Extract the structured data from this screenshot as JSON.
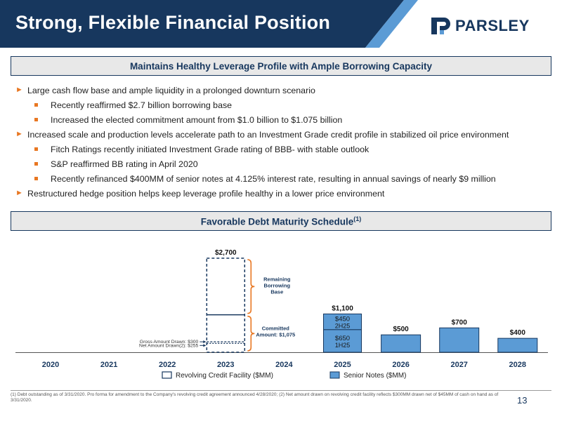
{
  "header": {
    "title": "Strong, Flexible Financial Position",
    "logo_text": "PARSLEY",
    "colors": {
      "navy": "#17375e",
      "orange": "#e87722",
      "bar_blue": "#5b9bd5"
    }
  },
  "section1": {
    "title": "Maintains Healthy Leverage Profile with Ample Borrowing Capacity"
  },
  "bullets": [
    {
      "level": 1,
      "text": "Large cash flow base and ample liquidity in a prolonged downturn scenario"
    },
    {
      "level": 2,
      "text": "Recently reaffirmed $2.7 billion borrowing base"
    },
    {
      "level": 2,
      "text": "Increased the elected commitment amount from $1.0 billion to $1.075 billion"
    },
    {
      "level": 1,
      "text": "Increased scale and production levels accelerate path to an Investment Grade credit profile in stabilized oil price environment"
    },
    {
      "level": 2,
      "text": "Fitch Ratings recently initiated Investment Grade rating of BBB- with stable outlook"
    },
    {
      "level": 2,
      "text": "S&P reaffirmed BB rating in April 2020"
    },
    {
      "level": 2,
      "text": "Recently refinanced $400MM of senior notes at 4.125% interest rate, resulting in annual savings of nearly $9 million"
    },
    {
      "level": 1,
      "text": "Restructured hedge position helps keep leverage profile healthy in a lower price environment"
    }
  ],
  "section2": {
    "title": "Favorable Debt Maturity Schedule",
    "sup": "(1)"
  },
  "chart_data": {
    "type": "bar",
    "categories": [
      "2020",
      "2021",
      "2022",
      "2023",
      "2024",
      "2025",
      "2026",
      "2027",
      "2028"
    ],
    "ylim": [
      0,
      2700
    ],
    "series": [
      {
        "name": "Revolving Credit Facility ($MM)",
        "values": [
          0,
          0,
          0,
          2700,
          0,
          0,
          0,
          0,
          0
        ]
      },
      {
        "name": "Senior Notes ($MM)",
        "values": [
          0,
          0,
          0,
          0,
          0,
          1100,
          500,
          700,
          400
        ]
      }
    ],
    "revolver": {
      "total": 2700,
      "total_label": "$2,700",
      "committed": 1075,
      "gross_drawn": 300,
      "net_drawn": 255,
      "label_remaining": "Remaining Borrowing Base",
      "label_committed_1": "Committed",
      "label_committed_2": "Amount: $1,075",
      "label_gross": "Gross Amount Drawn: $300",
      "label_net": "Net Amount Drawn(2): $255"
    },
    "senior_2025": {
      "total_label": "$1,100",
      "segments": [
        {
          "value": 650,
          "label": "$650",
          "sub": "1H25"
        },
        {
          "value": 450,
          "label": "$450",
          "sub": "2H25"
        }
      ]
    },
    "data_labels": {
      "2026": "$500",
      "2027": "$700",
      "2028": "$400"
    },
    "legend": [
      "Revolving Credit Facility ($MM)",
      "Senior Notes ($MM)"
    ]
  },
  "footnote": "(1) Debt outstanding as of 3/31/2020. Pro forma for amendment to the Company's revolving credit agreement announced 4/28/2020; (2) Net amount drawn on revolving credit facility reflects $300MM drawn net of $45MM of cash on hand as of 3/31/2020.",
  "page_number": "13"
}
